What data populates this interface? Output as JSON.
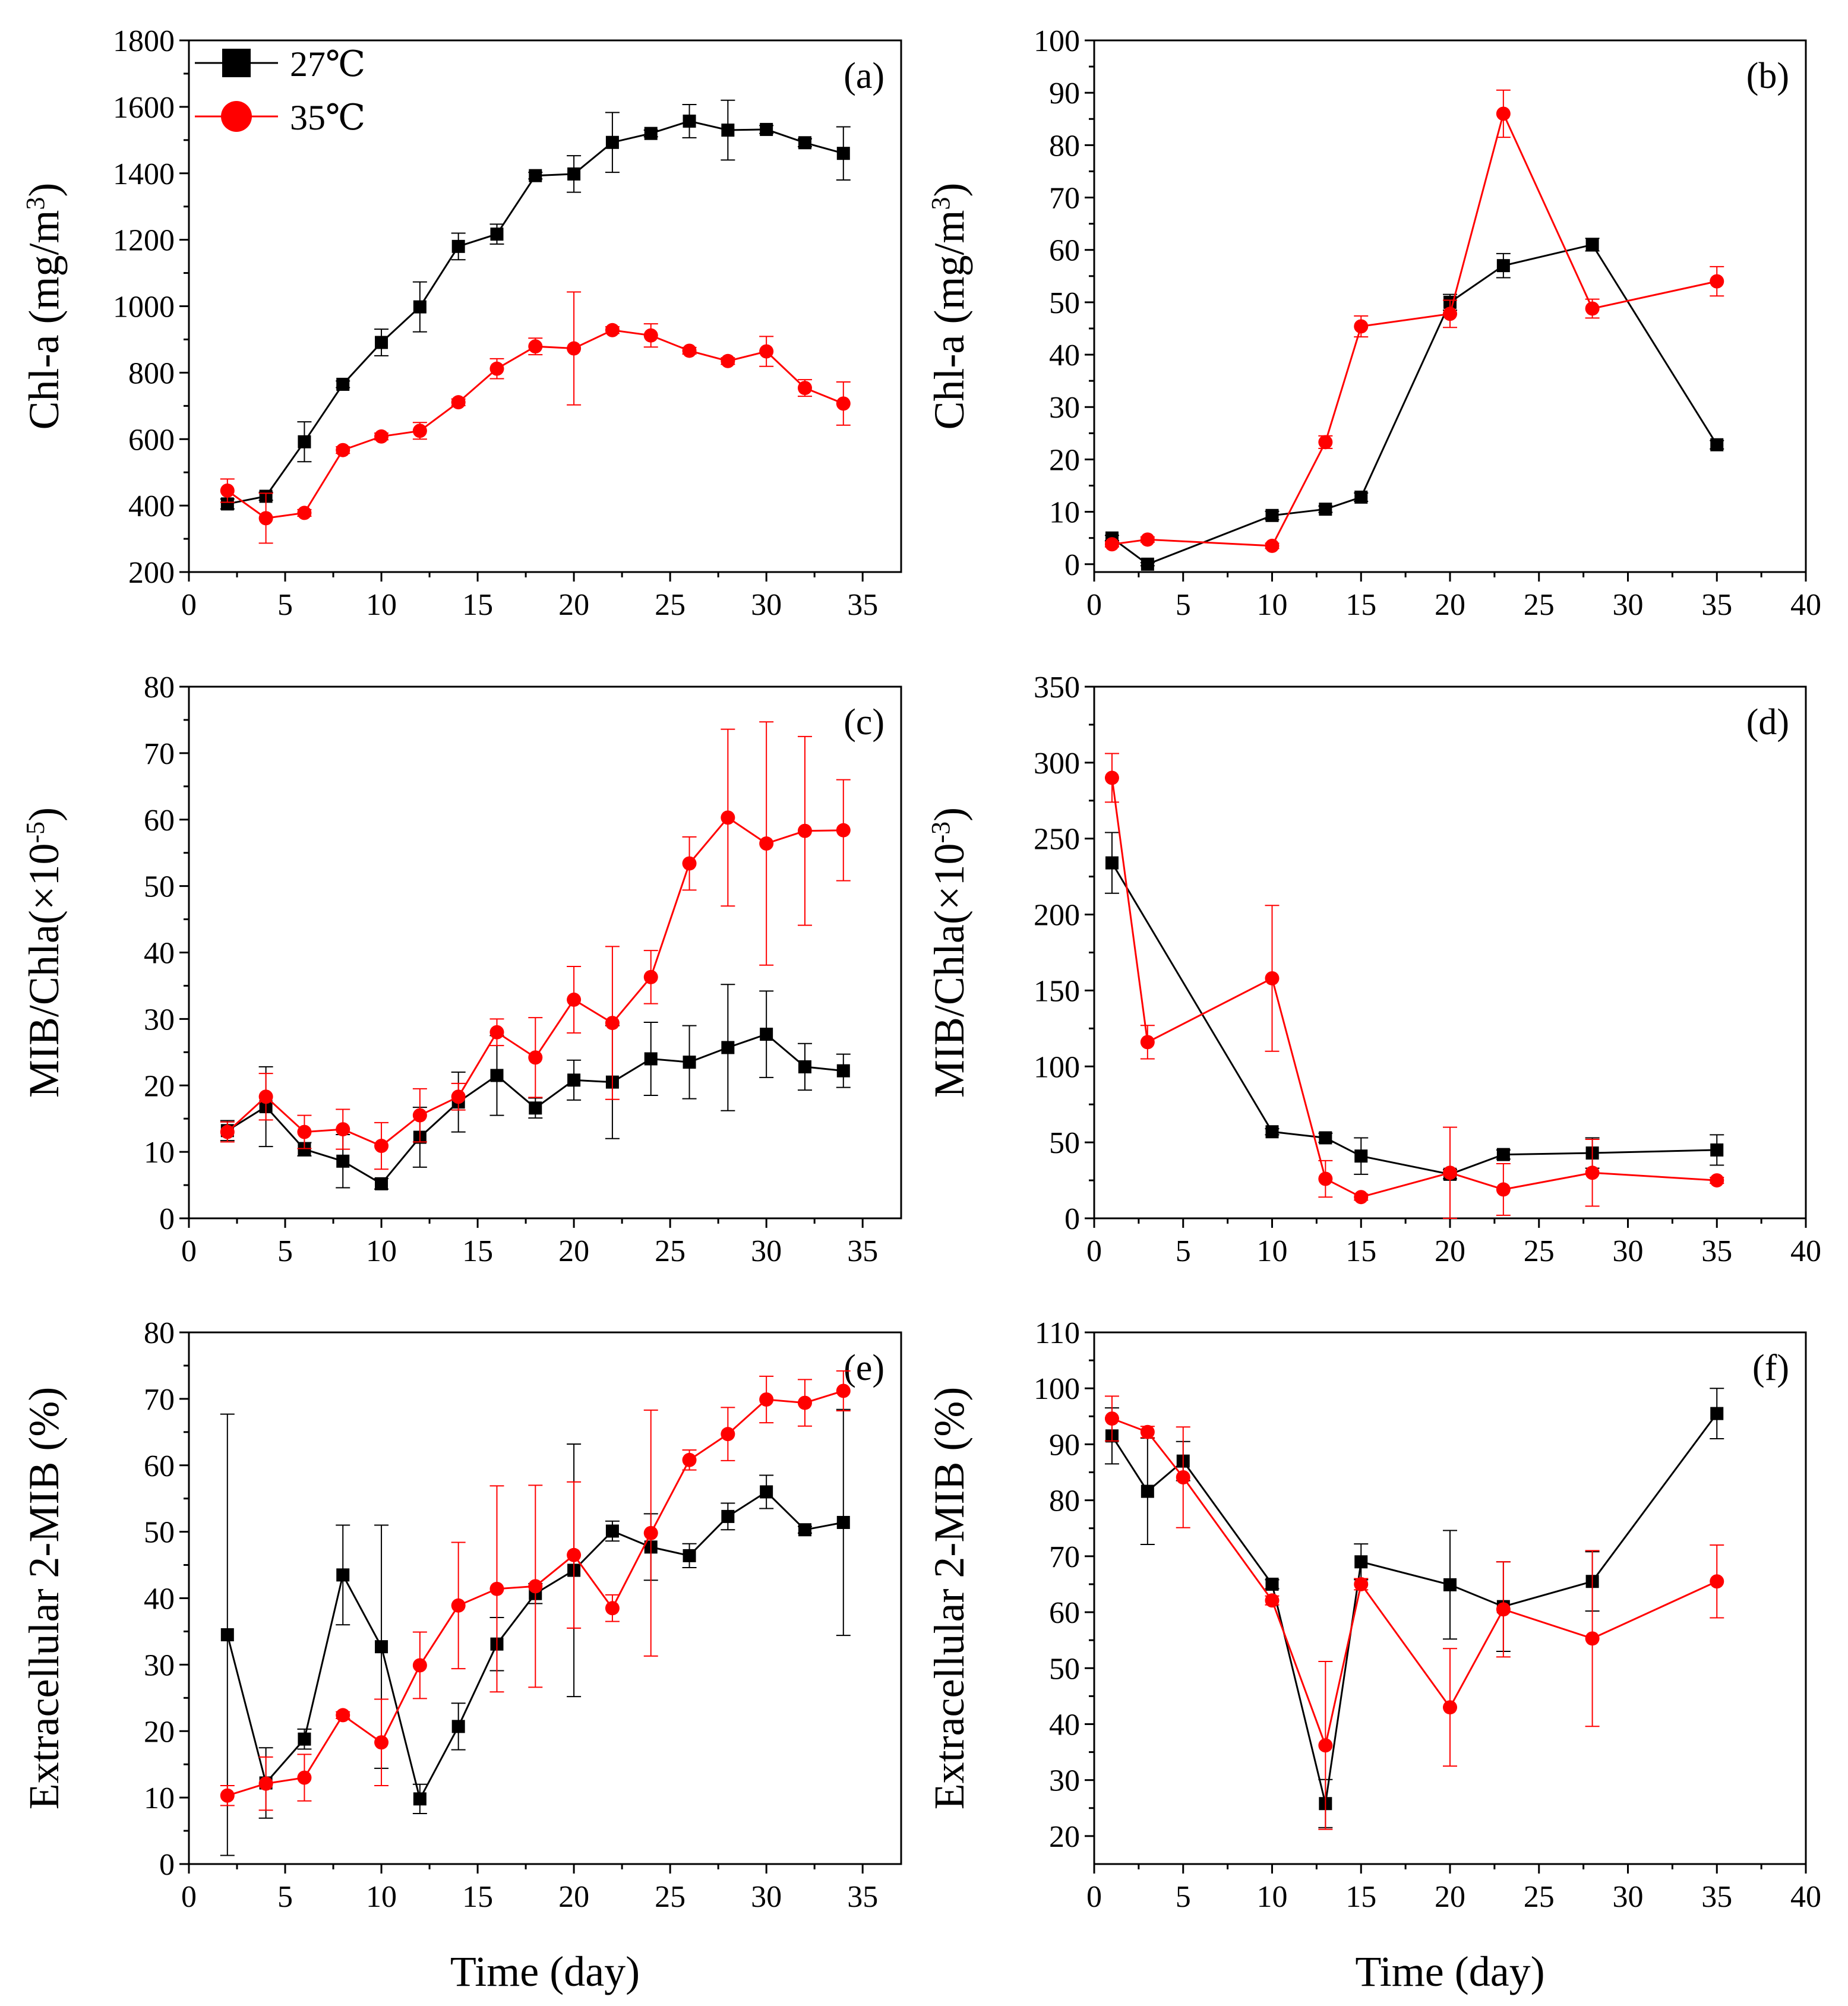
{
  "colors": {
    "series_27": "#000000",
    "series_35": "#ff0000"
  },
  "legend": {
    "series_27_label": "27℃",
    "series_35_label": "35℃"
  },
  "chart_data": [
    {
      "id": "a",
      "type": "line",
      "panel_label": "(a)",
      "ylabel_main": "Chl-a (mg/m",
      "ylabel_sup": "3",
      "ylabel_tail": ")",
      "xlabel": "",
      "xlim": [
        0,
        37
      ],
      "ylim": [
        200,
        1800
      ],
      "xticks": [
        0,
        5,
        10,
        15,
        20,
        25,
        30,
        35
      ],
      "yticks": [
        200,
        400,
        600,
        800,
        1000,
        1200,
        1400,
        1600,
        1800
      ],
      "series": [
        {
          "name": "27℃",
          "color": "#000000",
          "marker": "square",
          "x": [
            2,
            4,
            6,
            8,
            10,
            12,
            14,
            16,
            18,
            20,
            22,
            24,
            26,
            28,
            30,
            32,
            34
          ],
          "y": [
            405,
            428,
            592,
            765,
            891,
            998,
            1180,
            1217,
            1393,
            1398,
            1493,
            1520,
            1557,
            1530,
            1532,
            1492,
            1460
          ],
          "err": [
            15,
            12,
            60,
            10,
            40,
            75,
            40,
            30,
            10,
            55,
            90,
            10,
            50,
            90,
            12,
            12,
            80
          ]
        },
        {
          "name": "35℃",
          "color": "#ff0000",
          "marker": "circle",
          "x": [
            2,
            4,
            6,
            8,
            10,
            12,
            14,
            16,
            18,
            20,
            22,
            24,
            26,
            28,
            30,
            32,
            34
          ],
          "y": [
            445,
            362,
            378,
            567,
            608,
            625,
            711,
            812,
            879,
            873,
            928,
            912,
            866,
            835,
            864,
            754,
            707
          ],
          "err": [
            35,
            75,
            10,
            10,
            10,
            25,
            10,
            30,
            25,
            170,
            10,
            35,
            10,
            10,
            45,
            25,
            65
          ]
        }
      ]
    },
    {
      "id": "b",
      "type": "line",
      "panel_label": "(b)",
      "ylabel_main": "Chl-a (mg/m",
      "ylabel_sup": "3",
      "ylabel_tail": ")",
      "xlabel": "",
      "xlim": [
        0,
        40
      ],
      "ylim": [
        -1.5,
        100
      ],
      "xticks": [
        0,
        5,
        10,
        15,
        20,
        25,
        30,
        35,
        40
      ],
      "yticks": [
        0,
        10,
        20,
        30,
        40,
        50,
        60,
        70,
        80,
        90,
        100
      ],
      "series": [
        {
          "name": "27℃",
          "color": "#000000",
          "marker": "square",
          "x": [
            1,
            3,
            10,
            13,
            15,
            20,
            23,
            28,
            35
          ],
          "y": [
            5.0,
            0.0,
            9.3,
            10.5,
            12.8,
            50.0,
            57.0,
            61.0,
            22.8
          ],
          "err": [
            0.5,
            0.3,
            0.8,
            0.6,
            0.8,
            1.5,
            2.3,
            1.2,
            0.8
          ]
        },
        {
          "name": "35℃",
          "color": "#ff0000",
          "marker": "circle",
          "x": [
            1,
            3,
            10,
            13,
            15,
            20,
            23,
            28,
            35
          ],
          "y": [
            3.8,
            4.7,
            3.5,
            23.3,
            45.4,
            47.8,
            86.0,
            48.8,
            54.0
          ],
          "err": [
            0.5,
            0.5,
            0.5,
            1.2,
            2.0,
            2.6,
            4.5,
            1.8,
            2.8
          ]
        }
      ]
    },
    {
      "id": "c",
      "type": "line",
      "panel_label": "(c)",
      "ylabel_main": "MIB/Chla(×10",
      "ylabel_sup": "-5",
      "ylabel_tail": ")",
      "xlabel": "",
      "xlim": [
        0,
        37
      ],
      "ylim": [
        0,
        80
      ],
      "xticks": [
        0,
        5,
        10,
        15,
        20,
        25,
        30,
        35
      ],
      "yticks": [
        0,
        10,
        20,
        30,
        40,
        50,
        60,
        70,
        80
      ],
      "series": [
        {
          "name": "27℃",
          "color": "#000000",
          "marker": "square",
          "x": [
            2,
            4,
            6,
            8,
            10,
            12,
            14,
            16,
            18,
            20,
            22,
            24,
            26,
            28,
            30,
            32,
            34
          ],
          "y": [
            13.2,
            16.8,
            10.4,
            8.6,
            5.2,
            12.2,
            17.5,
            21.5,
            16.6,
            20.8,
            20.5,
            24.0,
            23.5,
            25.7,
            27.7,
            22.8,
            22.2
          ],
          "err": [
            1.5,
            6.0,
            1.0,
            4.0,
            0.8,
            4.5,
            4.5,
            6.0,
            1.5,
            3.0,
            8.5,
            5.5,
            5.5,
            9.5,
            6.5,
            3.5,
            2.5
          ]
        },
        {
          "name": "35℃",
          "color": "#ff0000",
          "marker": "circle",
          "x": [
            2,
            4,
            6,
            8,
            10,
            12,
            14,
            16,
            18,
            20,
            22,
            24,
            26,
            28,
            30,
            32,
            34
          ],
          "y": [
            13.0,
            18.3,
            13.0,
            13.4,
            10.9,
            15.5,
            18.3,
            28.0,
            24.2,
            32.9,
            29.4,
            36.3,
            53.4,
            60.3,
            56.4,
            58.3,
            58.4
          ],
          "err": [
            1.5,
            3.5,
            2.5,
            3.0,
            3.5,
            4.0,
            2.0,
            2.0,
            6.0,
            5.0,
            11.5,
            4.0,
            4.0,
            13.3,
            18.3,
            14.2,
            7.6
          ]
        }
      ]
    },
    {
      "id": "d",
      "type": "line",
      "panel_label": "(d)",
      "ylabel_main": "MIB/Chla(×10",
      "ylabel_sup": "-3",
      "ylabel_tail": ")",
      "xlabel": "",
      "xlim": [
        0,
        40
      ],
      "ylim": [
        0,
        350
      ],
      "xticks": [
        0,
        5,
        10,
        15,
        20,
        25,
        30,
        35,
        40
      ],
      "yticks": [
        0,
        50,
        100,
        150,
        200,
        250,
        300,
        350
      ],
      "series": [
        {
          "name": "27℃",
          "color": "#000000",
          "marker": "square",
          "x": [
            1,
            10,
            13,
            15,
            20,
            23,
            28,
            35
          ],
          "y": [
            234,
            57,
            53,
            41,
            29,
            42,
            43,
            45
          ],
          "err": [
            20,
            2,
            3,
            12,
            3,
            3,
            10,
            10
          ]
        },
        {
          "name": "35℃",
          "color": "#ff0000",
          "marker": "circle",
          "x": [
            1,
            3,
            10,
            13,
            15,
            20,
            23,
            28,
            35
          ],
          "y": [
            290,
            116,
            158,
            26,
            14,
            30,
            19,
            30,
            25
          ],
          "err": [
            16,
            11,
            48,
            12,
            2,
            30,
            17,
            22,
            2
          ]
        }
      ]
    },
    {
      "id": "e",
      "type": "line",
      "panel_label": "(e)",
      "ylabel_main": "Extracellular 2-MIB (%)",
      "ylabel_sup": "",
      "ylabel_tail": "",
      "xlabel": "Time (day)",
      "xlim": [
        0,
        37
      ],
      "ylim": [
        0,
        80
      ],
      "xticks": [
        0,
        5,
        10,
        15,
        20,
        25,
        30,
        35
      ],
      "yticks": [
        0,
        10,
        20,
        30,
        40,
        50,
        60,
        70,
        80
      ],
      "series": [
        {
          "name": "27℃",
          "color": "#000000",
          "marker": "square",
          "x": [
            2,
            4,
            6,
            8,
            10,
            12,
            14,
            16,
            18,
            20,
            22,
            24,
            26,
            28,
            30,
            32,
            34
          ],
          "y": [
            34.5,
            12.2,
            18.8,
            43.5,
            32.7,
            9.8,
            20.7,
            33.1,
            40.7,
            44.2,
            50.1,
            47.7,
            46.4,
            52.3,
            56.0,
            50.3,
            51.4
          ],
          "err": [
            33.2,
            5.3,
            1.5,
            7.5,
            18.3,
            2.2,
            3.5,
            4.0,
            1.5,
            19.0,
            1.5,
            5.0,
            1.8,
            2.0,
            2.5,
            0.5,
            17.0
          ]
        },
        {
          "name": "35℃",
          "color": "#ff0000",
          "marker": "circle",
          "x": [
            2,
            4,
            6,
            8,
            10,
            12,
            14,
            16,
            18,
            20,
            22,
            24,
            26,
            28,
            30,
            32,
            34
          ],
          "y": [
            10.3,
            12.1,
            13.0,
            22.4,
            18.3,
            29.9,
            38.9,
            41.4,
            41.8,
            46.5,
            38.5,
            49.8,
            60.8,
            64.7,
            69.9,
            69.4,
            71.2
          ],
          "err": [
            1.5,
            4.0,
            3.5,
            0.5,
            6.5,
            5.0,
            9.5,
            15.5,
            15.2,
            11.0,
            2.0,
            18.5,
            1.5,
            4.0,
            3.5,
            3.5,
            3.0
          ]
        }
      ]
    },
    {
      "id": "f",
      "type": "line",
      "panel_label": "(f)",
      "ylabel_main": "Extracellular 2-MIB (%)",
      "ylabel_sup": "",
      "ylabel_tail": "",
      "xlabel": "Time (day)",
      "xlim": [
        0,
        40
      ],
      "ylim": [
        15,
        110
      ],
      "xticks": [
        0,
        5,
        10,
        15,
        20,
        25,
        30,
        35,
        40
      ],
      "yticks": [
        20,
        30,
        40,
        50,
        60,
        70,
        80,
        90,
        100,
        110
      ],
      "series": [
        {
          "name": "27℃",
          "color": "#000000",
          "marker": "square",
          "x": [
            1,
            3,
            5,
            10,
            13,
            15,
            20,
            23,
            28,
            35
          ],
          "y": [
            91.5,
            81.6,
            87.0,
            65.0,
            25.8,
            69.0,
            64.9,
            61.0,
            65.5,
            95.5
          ],
          "err": [
            5.0,
            9.5,
            3.5,
            0.8,
            4.3,
            3.2,
            9.7,
            8.0,
            5.3,
            4.5
          ]
        },
        {
          "name": "35℃",
          "color": "#ff0000",
          "marker": "circle",
          "x": [
            1,
            3,
            5,
            10,
            13,
            15,
            20,
            23,
            28,
            35
          ],
          "y": [
            94.6,
            92.2,
            84.1,
            62.1,
            36.2,
            65.0,
            43.0,
            60.5,
            55.3,
            65.5
          ],
          "err": [
            4.0,
            1.0,
            9.0,
            0.8,
            15.0,
            1.0,
            10.5,
            8.5,
            15.7,
            6.5
          ]
        }
      ]
    }
  ]
}
